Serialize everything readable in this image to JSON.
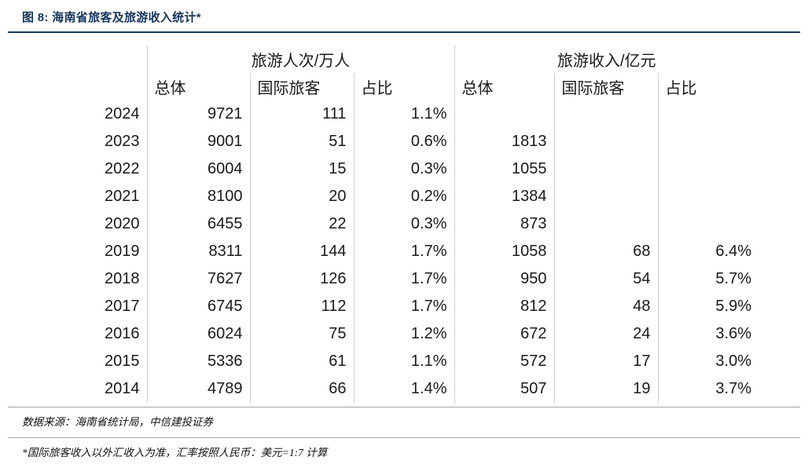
{
  "page": {
    "title": "图 8: 海南省旅客及旅游收入统计*",
    "source_note": "数据来源：海南省统计局，中信建投证券",
    "footnote": "*国际旅客收入以外汇收入为准，汇率按照人民币：美元=1:7 计算"
  },
  "colors": {
    "title_navy": "#16365c",
    "table_border": "#cfcfcf",
    "footer_rule_gray": "#a6a6a6"
  },
  "chart_data": {
    "type": "table",
    "title": "海南省旅客及旅游收入统计",
    "group_headers": [
      {
        "label": "旅游人次/万人",
        "span": 3
      },
      {
        "label": "旅游收入/亿元",
        "span": 3
      }
    ],
    "column_headers": [
      "总体",
      "国际旅客",
      "占比",
      "总体",
      "国际旅客",
      "占比"
    ],
    "rows": [
      {
        "year": "2024",
        "values": [
          "9721",
          "111",
          "1.1%",
          "",
          "",
          ""
        ]
      },
      {
        "year": "2023",
        "values": [
          "9001",
          "51",
          "0.6%",
          "1813",
          "",
          ""
        ]
      },
      {
        "year": "2022",
        "values": [
          "6004",
          "15",
          "0.3%",
          "1055",
          "",
          ""
        ]
      },
      {
        "year": "2021",
        "values": [
          "8100",
          "20",
          "0.2%",
          "1384",
          "",
          ""
        ]
      },
      {
        "year": "2020",
        "values": [
          "6455",
          "22",
          "0.3%",
          "873",
          "",
          ""
        ]
      },
      {
        "year": "2019",
        "values": [
          "8311",
          "144",
          "1.7%",
          "1058",
          "68",
          "6.4%"
        ]
      },
      {
        "year": "2018",
        "values": [
          "7627",
          "126",
          "1.7%",
          "950",
          "54",
          "5.7%"
        ]
      },
      {
        "year": "2017",
        "values": [
          "6745",
          "112",
          "1.7%",
          "812",
          "48",
          "5.9%"
        ]
      },
      {
        "year": "2016",
        "values": [
          "6024",
          "75",
          "1.2%",
          "672",
          "24",
          "3.6%"
        ]
      },
      {
        "year": "2015",
        "values": [
          "5336",
          "61",
          "1.1%",
          "572",
          "17",
          "3.0%"
        ]
      },
      {
        "year": "2014",
        "values": [
          "4789",
          "66",
          "1.4%",
          "507",
          "19",
          "3.7%"
        ]
      }
    ]
  }
}
